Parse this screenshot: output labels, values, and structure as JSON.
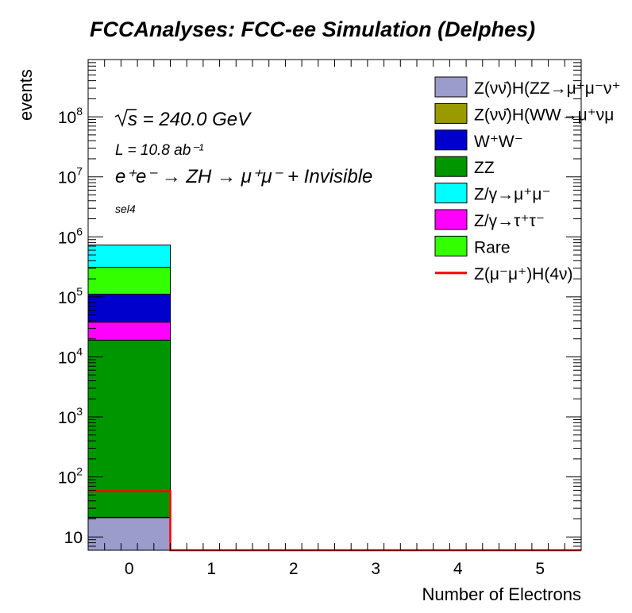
{
  "chart_data": {
    "type": "bar",
    "stacked": true,
    "title": "FCCAnalyses: FCC-ee Simulation (Delphes)",
    "xlabel": "Number of Electrons",
    "ylabel": "events",
    "yscale": "log",
    "xlim": [
      -0.5,
      5.5
    ],
    "ylim": [
      6,
      900000000
    ],
    "x_ticks": [
      "0",
      "1",
      "2",
      "3",
      "4",
      "5"
    ],
    "y_ticks": [
      {
        "value": 10,
        "base": "10",
        "exp": ""
      },
      {
        "value": 100,
        "base": "10",
        "exp": "2"
      },
      {
        "value": 1000,
        "base": "10",
        "exp": "3"
      },
      {
        "value": 10000,
        "base": "10",
        "exp": "4"
      },
      {
        "value": 100000,
        "base": "10",
        "exp": "5"
      },
      {
        "value": 1000000,
        "base": "10",
        "exp": "6"
      },
      {
        "value": 10000000,
        "base": "10",
        "exp": "7"
      },
      {
        "value": 100000000,
        "base": "10",
        "exp": "8"
      }
    ],
    "categories": [
      "0",
      "1",
      "2",
      "3",
      "4",
      "5"
    ],
    "series": [
      {
        "name": "Z(νν̄)H(ZZ→μ⁺μ⁻ν⁺",
        "color": "#9b9bcc",
        "values": [
          21,
          0,
          0,
          0,
          0,
          0
        ]
      },
      {
        "name": "Z(νν̄)H(WW→μ⁺νμ",
        "color": "#999900",
        "values": [
          0.3,
          0,
          0,
          0,
          0,
          0
        ]
      },
      {
        "name": "ZZ",
        "color": "#009600",
        "values": [
          19000,
          0,
          0,
          0,
          0,
          0
        ]
      },
      {
        "name": "Z/γ→τ⁺τ⁻",
        "color": "#ff00ff",
        "values": [
          19000,
          0,
          0,
          0,
          0,
          0
        ]
      },
      {
        "name": "W⁺W⁻",
        "color": "#0000cc",
        "values": [
          73000,
          0,
          0,
          0,
          0,
          0
        ]
      },
      {
        "name": "Rare",
        "color": "#33ff00",
        "values": [
          200000,
          0,
          0,
          0,
          0,
          0
        ]
      },
      {
        "name": "Z/γ→μ⁺μ⁻",
        "color": "#00ffff",
        "values": [
          420000,
          0,
          0,
          0,
          0,
          0
        ]
      }
    ],
    "signal": {
      "name": "Z(μ⁻μ⁺)H(4ν)",
      "color": "#ff0000",
      "values": [
        58,
        0,
        0,
        0,
        0,
        0
      ]
    },
    "legend": {
      "placement": "top-right",
      "entries": [
        {
          "label": "Z(νν̄)H(ZZ→μ⁺μ⁻ν⁺",
          "color": "#9b9bcc",
          "kind": "fill"
        },
        {
          "label": "Z(νν̄)H(WW→μ⁺νμ",
          "color": "#999900",
          "kind": "fill"
        },
        {
          "label": "W⁺W⁻",
          "color": "#0000cc",
          "kind": "fill"
        },
        {
          "label": "ZZ",
          "color": "#009600",
          "kind": "fill"
        },
        {
          "label": "Z/γ→μ⁺μ⁻",
          "color": "#00ffff",
          "kind": "fill"
        },
        {
          "label": "Z/γ→τ⁺τ⁻",
          "color": "#ff00ff",
          "kind": "fill"
        },
        {
          "label": "Rare",
          "color": "#33ff00",
          "kind": "fill"
        },
        {
          "label": "Z(μ⁻μ⁺)H(4ν)",
          "color": "#ff0000",
          "kind": "line"
        }
      ]
    },
    "annotations": {
      "sqrt_s": "s = 240.0 GeV",
      "lumi": "L = 10.8 ab⁻¹",
      "process": "e⁺e⁻ → ZH → μ⁺μ⁻ + Invisible",
      "selection": "sel4"
    }
  }
}
